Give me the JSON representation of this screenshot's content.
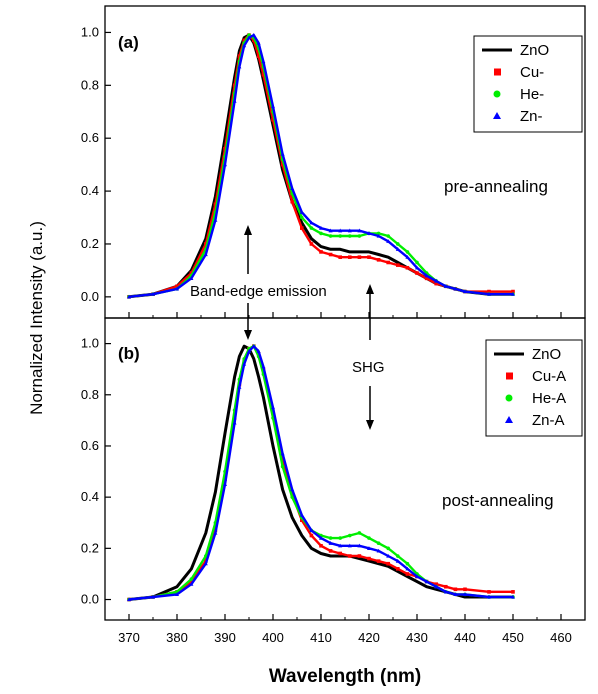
{
  "figure": {
    "ylabel": "Nornalized Intensity (a.u.)",
    "xlabel": "Wavelength (nm)",
    "annotations": {
      "band_edge": "Band-edge emission",
      "shg": "SHG"
    }
  },
  "chart_data": [
    {
      "type": "line",
      "panel_label": "(a)",
      "condition_label": "pre-annealing",
      "xlim": [
        365,
        465
      ],
      "ylim": [
        -0.08,
        1.1
      ],
      "xticks": [
        370,
        380,
        390,
        400,
        410,
        420,
        430,
        440,
        450,
        460
      ],
      "yticks": [
        0.0,
        0.2,
        0.4,
        0.6,
        0.8,
        1.0
      ],
      "legend_position": "top-right",
      "series": [
        {
          "name": "ZnO",
          "color": "#000000",
          "marker": "line",
          "x": [
            370,
            375,
            380,
            383,
            386,
            388,
            390,
            392,
            393,
            394,
            395,
            396,
            397,
            398,
            400,
            402,
            404,
            406,
            408,
            410,
            412,
            414,
            416,
            418,
            420,
            422,
            424,
            426,
            428,
            430,
            432,
            434,
            436,
            438,
            440,
            445,
            450
          ],
          "y": [
            0.0,
            0.01,
            0.04,
            0.1,
            0.22,
            0.38,
            0.6,
            0.83,
            0.93,
            0.98,
            0.99,
            0.96,
            0.9,
            0.82,
            0.65,
            0.48,
            0.36,
            0.28,
            0.22,
            0.19,
            0.18,
            0.18,
            0.17,
            0.17,
            0.17,
            0.16,
            0.15,
            0.13,
            0.11,
            0.09,
            0.07,
            0.05,
            0.04,
            0.03,
            0.02,
            0.01,
            0.01
          ]
        },
        {
          "name": "Cu-",
          "color": "#ff0000",
          "marker": "square",
          "x": [
            370,
            375,
            380,
            383,
            386,
            388,
            390,
            392,
            393,
            394,
            395,
            396,
            397,
            398,
            400,
            402,
            404,
            406,
            408,
            410,
            412,
            414,
            416,
            418,
            420,
            422,
            424,
            426,
            428,
            430,
            432,
            434,
            436,
            438,
            440,
            445,
            450
          ],
          "y": [
            0.0,
            0.01,
            0.04,
            0.09,
            0.2,
            0.35,
            0.56,
            0.8,
            0.91,
            0.97,
            0.99,
            0.97,
            0.91,
            0.84,
            0.67,
            0.5,
            0.36,
            0.26,
            0.2,
            0.17,
            0.16,
            0.15,
            0.15,
            0.15,
            0.15,
            0.14,
            0.13,
            0.12,
            0.11,
            0.09,
            0.07,
            0.05,
            0.04,
            0.03,
            0.02,
            0.02,
            0.02
          ]
        },
        {
          "name": "He-",
          "color": "#00ee00",
          "marker": "circle",
          "x": [
            370,
            375,
            380,
            383,
            386,
            388,
            390,
            392,
            393,
            394,
            395,
            396,
            397,
            398,
            400,
            402,
            404,
            406,
            408,
            410,
            412,
            414,
            416,
            418,
            420,
            422,
            424,
            426,
            428,
            430,
            432,
            434,
            436,
            438,
            440,
            445,
            450
          ],
          "y": [
            0.0,
            0.01,
            0.03,
            0.08,
            0.18,
            0.32,
            0.53,
            0.77,
            0.89,
            0.96,
            0.99,
            0.98,
            0.94,
            0.87,
            0.7,
            0.52,
            0.39,
            0.3,
            0.26,
            0.24,
            0.23,
            0.23,
            0.23,
            0.23,
            0.24,
            0.24,
            0.23,
            0.2,
            0.17,
            0.13,
            0.09,
            0.06,
            0.04,
            0.03,
            0.02,
            0.01,
            0.01
          ]
        },
        {
          "name": "Zn-",
          "color": "#0000ff",
          "marker": "triangle",
          "x": [
            370,
            375,
            380,
            383,
            386,
            388,
            390,
            392,
            393,
            394,
            395,
            396,
            397,
            398,
            400,
            402,
            404,
            406,
            408,
            410,
            412,
            414,
            416,
            418,
            420,
            422,
            424,
            426,
            428,
            430,
            432,
            434,
            436,
            438,
            440,
            445,
            450
          ],
          "y": [
            0.0,
            0.01,
            0.03,
            0.07,
            0.16,
            0.29,
            0.5,
            0.74,
            0.87,
            0.95,
            0.98,
            0.99,
            0.96,
            0.89,
            0.72,
            0.54,
            0.41,
            0.32,
            0.28,
            0.26,
            0.25,
            0.25,
            0.25,
            0.25,
            0.24,
            0.23,
            0.21,
            0.18,
            0.15,
            0.11,
            0.08,
            0.06,
            0.04,
            0.03,
            0.02,
            0.01,
            0.01
          ]
        }
      ]
    },
    {
      "type": "line",
      "panel_label": "(b)",
      "condition_label": "post-annealing",
      "xlim": [
        365,
        465
      ],
      "ylim": [
        -0.08,
        1.1
      ],
      "xticks": [
        370,
        380,
        390,
        400,
        410,
        420,
        430,
        440,
        450,
        460
      ],
      "yticks": [
        0.0,
        0.2,
        0.4,
        0.6,
        0.8,
        1.0
      ],
      "legend_position": "top-right",
      "series": [
        {
          "name": "ZnO",
          "color": "#000000",
          "marker": "line",
          "x": [
            370,
            375,
            380,
            383,
            386,
            388,
            390,
            392,
            393,
            394,
            395,
            396,
            397,
            398,
            400,
            402,
            404,
            406,
            408,
            410,
            412,
            414,
            416,
            418,
            420,
            422,
            424,
            426,
            428,
            430,
            432,
            434,
            436,
            438,
            440,
            445,
            450
          ],
          "y": [
            0.0,
            0.01,
            0.05,
            0.12,
            0.26,
            0.42,
            0.65,
            0.87,
            0.95,
            0.99,
            0.98,
            0.94,
            0.87,
            0.79,
            0.6,
            0.43,
            0.32,
            0.25,
            0.2,
            0.18,
            0.17,
            0.17,
            0.17,
            0.16,
            0.15,
            0.14,
            0.13,
            0.11,
            0.09,
            0.07,
            0.05,
            0.04,
            0.03,
            0.02,
            0.01,
            0.01,
            0.01
          ]
        },
        {
          "name": "Cu-A",
          "color": "#ff0000",
          "marker": "square",
          "x": [
            370,
            375,
            380,
            383,
            386,
            388,
            390,
            392,
            393,
            394,
            395,
            396,
            397,
            398,
            400,
            402,
            404,
            406,
            408,
            410,
            412,
            414,
            416,
            418,
            420,
            422,
            424,
            426,
            428,
            430,
            432,
            434,
            436,
            438,
            440,
            445,
            450
          ],
          "y": [
            0.0,
            0.01,
            0.03,
            0.07,
            0.15,
            0.27,
            0.47,
            0.71,
            0.84,
            0.93,
            0.98,
            0.99,
            0.96,
            0.9,
            0.73,
            0.55,
            0.41,
            0.31,
            0.25,
            0.21,
            0.19,
            0.18,
            0.17,
            0.17,
            0.16,
            0.15,
            0.14,
            0.12,
            0.1,
            0.09,
            0.07,
            0.06,
            0.05,
            0.04,
            0.04,
            0.03,
            0.03
          ]
        },
        {
          "name": "He-A",
          "color": "#00ee00",
          "marker": "circle",
          "x": [
            370,
            375,
            380,
            383,
            386,
            388,
            390,
            392,
            393,
            394,
            395,
            396,
            397,
            398,
            400,
            402,
            404,
            406,
            408,
            410,
            412,
            414,
            416,
            418,
            420,
            422,
            424,
            426,
            428,
            430,
            432,
            434,
            436,
            438,
            440,
            445,
            450
          ],
          "y": [
            0.0,
            0.01,
            0.03,
            0.08,
            0.17,
            0.3,
            0.5,
            0.74,
            0.86,
            0.94,
            0.98,
            0.99,
            0.95,
            0.88,
            0.71,
            0.52,
            0.4,
            0.32,
            0.27,
            0.25,
            0.24,
            0.24,
            0.25,
            0.26,
            0.24,
            0.22,
            0.2,
            0.17,
            0.14,
            0.1,
            0.07,
            0.05,
            0.03,
            0.02,
            0.02,
            0.01,
            0.01
          ]
        },
        {
          "name": "Zn-A",
          "color": "#0000ff",
          "marker": "triangle",
          "x": [
            370,
            375,
            380,
            383,
            386,
            388,
            390,
            392,
            393,
            394,
            395,
            396,
            397,
            398,
            400,
            402,
            404,
            406,
            408,
            410,
            412,
            414,
            416,
            418,
            420,
            422,
            424,
            426,
            428,
            430,
            432,
            434,
            436,
            438,
            440,
            445,
            450
          ],
          "y": [
            0.0,
            0.01,
            0.02,
            0.06,
            0.14,
            0.26,
            0.45,
            0.69,
            0.83,
            0.92,
            0.97,
            0.99,
            0.97,
            0.91,
            0.75,
            0.57,
            0.43,
            0.33,
            0.27,
            0.24,
            0.22,
            0.21,
            0.21,
            0.21,
            0.2,
            0.19,
            0.17,
            0.15,
            0.12,
            0.09,
            0.07,
            0.05,
            0.03,
            0.02,
            0.02,
            0.01,
            0.01
          ]
        }
      ]
    }
  ]
}
